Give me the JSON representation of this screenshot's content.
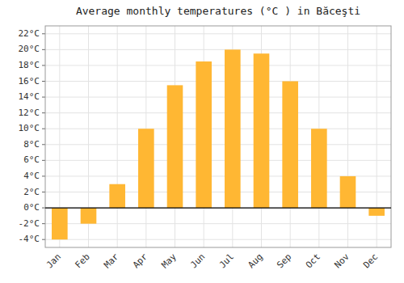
{
  "chart_data": {
    "type": "bar",
    "title": "Average monthly temperatures (°C ) in Băceşti",
    "categories": [
      "Jan",
      "Feb",
      "Mar",
      "Apr",
      "May",
      "Jun",
      "Jul",
      "Aug",
      "Sep",
      "Oct",
      "Nov",
      "Dec"
    ],
    "values": [
      -4,
      -2,
      3,
      10,
      15.5,
      18.5,
      20,
      19.5,
      16,
      10,
      4,
      -1
    ],
    "color": "#FFB733",
    "ylim": [
      -5,
      23
    ],
    "yticks": [
      {
        "value": -4,
        "label": "-4°C"
      },
      {
        "value": -2,
        "label": "-2°C"
      },
      {
        "value": 0,
        "label": "0°C"
      },
      {
        "value": 2,
        "label": "2°C"
      },
      {
        "value": 4,
        "label": "4°C"
      },
      {
        "value": 6,
        "label": "6°C"
      },
      {
        "value": 8,
        "label": "8°C"
      },
      {
        "value": 10,
        "label": "10°C"
      },
      {
        "value": 12,
        "label": "12°C"
      },
      {
        "value": 14,
        "label": "14°C"
      },
      {
        "value": 16,
        "label": "16°C"
      },
      {
        "value": 18,
        "label": "18°C"
      },
      {
        "value": 20,
        "label": "20°C"
      },
      {
        "value": 22,
        "label": "22°C"
      }
    ],
    "grid": true
  }
}
